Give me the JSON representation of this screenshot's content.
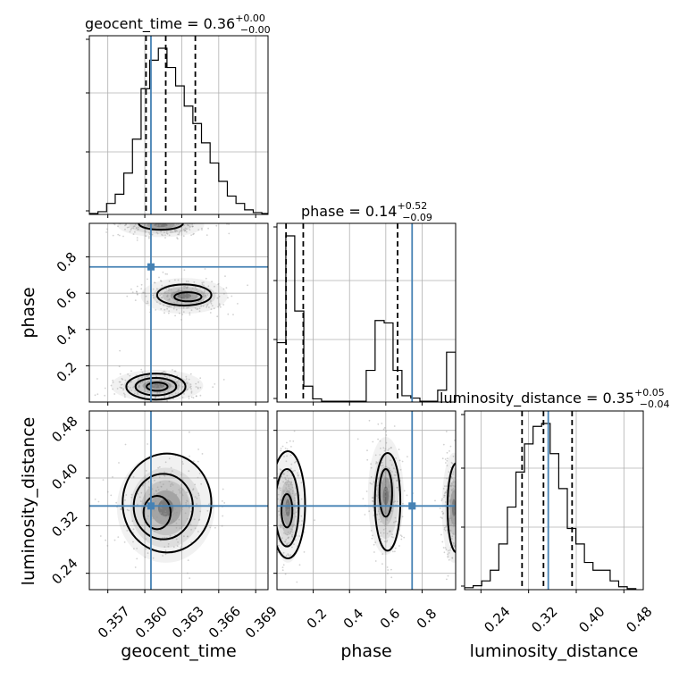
{
  "chart_data": {
    "type": "corner",
    "parameters": [
      "geocent_time",
      "phase",
      "luminosity_distance"
    ],
    "injection": {
      "geocent_time": 0.3605,
      "phase": 0.745,
      "luminosity_distance": 0.353
    },
    "colors": {
      "injection": "#4682b4",
      "hist": "#000000",
      "grid": "#b0b0b0",
      "points": "#9a9a9a"
    },
    "grid": true,
    "marginals": [
      {
        "param": "geocent_time",
        "title": {
          "text": "geocent_time = 0.36",
          "plus": "+0.00",
          "minus": "−0.00"
        },
        "range": [
          0.3555,
          0.37
        ],
        "quantiles": [
          0.3601,
          0.3617,
          0.3641
        ],
        "bins": [
          0.3555,
          0.3562,
          0.3569,
          0.3576,
          0.3583,
          0.359,
          0.3597,
          0.3604,
          0.3611,
          0.3618,
          0.3625,
          0.3632,
          0.3639,
          0.3646,
          0.3653,
          0.366,
          0.3667,
          0.3674,
          0.3681,
          0.3688,
          0.3695,
          0.37
        ],
        "counts": [
          1,
          3,
          12,
          22,
          45,
          82,
          137,
          168,
          181,
          160,
          140,
          118,
          99,
          78,
          56,
          36,
          20,
          12,
          5,
          2,
          1
        ]
      },
      {
        "param": "phase",
        "title": {
          "text": "phase = 0.14",
          "plus": "+0.52",
          "minus": "−0.09"
        },
        "range": [
          0.0,
          0.985
        ],
        "quantiles": [
          0.05,
          0.145,
          0.665
        ],
        "bins": [
          0.0,
          0.049,
          0.098,
          0.148,
          0.197,
          0.246,
          0.295,
          0.345,
          0.394,
          0.443,
          0.492,
          0.541,
          0.591,
          0.64,
          0.689,
          0.738,
          0.788,
          0.837,
          0.886,
          0.935,
          0.985
        ],
        "counts": [
          75,
          210,
          115,
          20,
          4,
          1,
          1,
          1,
          1,
          1,
          40,
          103,
          100,
          40,
          8,
          5,
          1,
          1,
          15,
          63
        ]
      },
      {
        "param": "luminosity_distance",
        "title": {
          "text": "luminosity_distance = 0.35",
          "plus": "+0.05",
          "minus": "−0.04"
        },
        "range": [
          0.2125,
          0.5125
        ],
        "quantiles": [
          0.309,
          0.345,
          0.393
        ],
        "bins": [
          0.2125,
          0.2269,
          0.2413,
          0.2556,
          0.27,
          0.2844,
          0.2987,
          0.3131,
          0.3275,
          0.3419,
          0.3562,
          0.3706,
          0.385,
          0.3994,
          0.4137,
          0.4281,
          0.4425,
          0.4569,
          0.4712,
          0.4856,
          0.5
        ],
        "counts": [
          2,
          4,
          9,
          20,
          47,
          85,
          121,
          150,
          168,
          171,
          140,
          104,
          63,
          47,
          28,
          20,
          20,
          9,
          3,
          1
        ]
      }
    ],
    "joints": [
      {
        "x": "geocent_time",
        "y": "phase",
        "blobs": [
          {
            "cx": 0.361,
            "cy": 0.09,
            "sx": 0.0017,
            "sy": 0.04
          },
          {
            "cx": 0.3632,
            "cy": 0.585,
            "sx": 0.0016,
            "sy": 0.045
          },
          {
            "cx": 0.3613,
            "cy": 0.975,
            "sx": 0.0016,
            "sy": 0.03
          }
        ],
        "contours": [
          {
            "cx": 0.361,
            "cy": 0.085,
            "rx": 0.00085,
            "ry": 0.023
          },
          {
            "cx": 0.3609,
            "cy": 0.085,
            "rx": 0.00165,
            "ry": 0.048
          },
          {
            "cx": 0.3609,
            "cy": 0.085,
            "rx": 0.0024,
            "ry": 0.072
          },
          {
            "cx": 0.3635,
            "cy": 0.58,
            "rx": 0.0011,
            "ry": 0.025
          },
          {
            "cx": 0.3632,
            "cy": 0.59,
            "rx": 0.0022,
            "ry": 0.058
          },
          {
            "cx": 0.3613,
            "cy": 0.985,
            "rx": 0.0018,
            "ry": 0.035
          }
        ]
      },
      {
        "x": "geocent_time",
        "y": "luminosity_distance",
        "blobs": [
          {
            "cx": 0.3617,
            "cy": 0.35,
            "sx": 0.0018,
            "sy": 0.042
          }
        ],
        "contours": [
          {
            "cx": 0.361,
            "cy": 0.342,
            "rx": 0.0011,
            "ry": 0.028
          },
          {
            "cx": 0.3615,
            "cy": 0.352,
            "rx": 0.0024,
            "ry": 0.055
          },
          {
            "cx": 0.3618,
            "cy": 0.358,
            "rx": 0.0036,
            "ry": 0.083
          }
        ]
      },
      {
        "x": "phase",
        "y": "luminosity_distance",
        "blobs": [
          {
            "cx": 0.06,
            "cy": 0.35,
            "sx": 0.04,
            "sy": 0.042
          },
          {
            "cx": 0.6,
            "cy": 0.37,
            "sx": 0.045,
            "sy": 0.045
          },
          {
            "cx": 0.975,
            "cy": 0.35,
            "sx": 0.03,
            "sy": 0.042
          }
        ],
        "contours": [
          {
            "cx": 0.055,
            "cy": 0.345,
            "rx": 0.03,
            "ry": 0.028
          },
          {
            "cx": 0.055,
            "cy": 0.35,
            "rx": 0.065,
            "ry": 0.065
          },
          {
            "cx": 0.06,
            "cy": 0.355,
            "rx": 0.095,
            "ry": 0.09
          },
          {
            "cx": 0.6,
            "cy": 0.375,
            "rx": 0.035,
            "ry": 0.04
          },
          {
            "cx": 0.61,
            "cy": 0.36,
            "rx": 0.07,
            "ry": 0.082
          },
          {
            "cx": 0.99,
            "cy": 0.35,
            "rx": 0.05,
            "ry": 0.075
          }
        ]
      }
    ],
    "ticks": {
      "geocent_time": [
        "0.357",
        "0.360",
        "0.363",
        "0.366",
        "0.369"
      ],
      "phase": [
        "0.2",
        "0.4",
        "0.6",
        "0.8"
      ],
      "luminosity_distance": [
        "0.24",
        "0.32",
        "0.40",
        "0.48"
      ]
    },
    "axis_labels": {
      "geocent_time": "geocent_time",
      "phase": "phase",
      "luminosity_distance": "luminosity_distance"
    }
  }
}
